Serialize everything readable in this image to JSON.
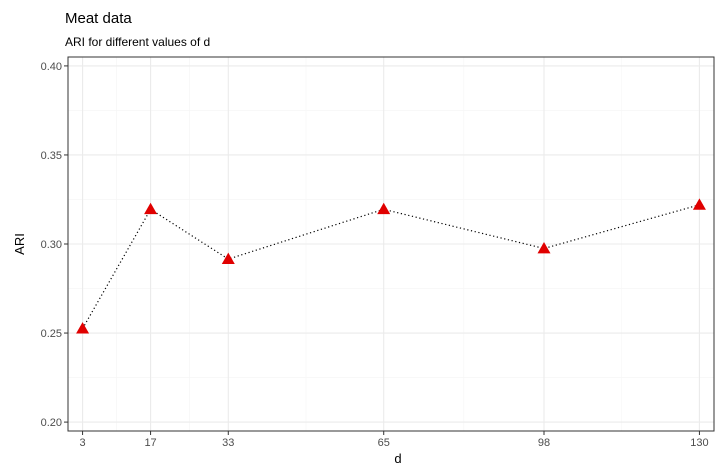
{
  "chart_data": {
    "type": "line",
    "title": "Meat data",
    "subtitle": "ARI for different values of d",
    "xlabel": "d",
    "ylabel": "ARI",
    "x": [
      3,
      17,
      33,
      65,
      98,
      130
    ],
    "series": [
      {
        "values": [
          0.2525,
          0.3195,
          0.2915,
          0.3195,
          0.2975,
          0.322
        ]
      }
    ],
    "x_ticks": [
      "3",
      "17",
      "33",
      "65",
      "98",
      "130"
    ],
    "y_ticks": [
      "0.20",
      "0.25",
      "0.30",
      "0.35",
      "0.40"
    ],
    "ylim": [
      0.195,
      0.405
    ],
    "xlim": [
      0,
      133
    ],
    "grid": true,
    "line_style": "dotted",
    "marker": "triangle",
    "colors": {
      "marker": "#e00000",
      "line": "#000000",
      "grid_major": "#ebebeb",
      "grid_minor": "#f5f5f5",
      "panel_border": "#333333"
    }
  }
}
